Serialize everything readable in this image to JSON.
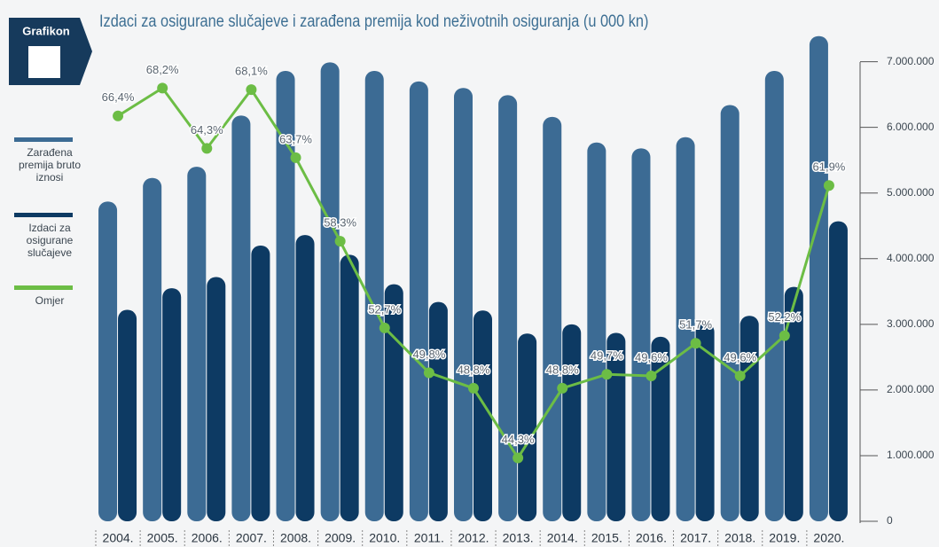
{
  "chart_data": {
    "type": "bar",
    "title": "Izdaci za osigurane slučajeve i zarađena premija kod neživotnih osiguranja (u 000 kn)",
    "badge": "Grafikon",
    "categories": [
      "2004.",
      "2005.",
      "2006.",
      "2007.",
      "2008.",
      "2009.",
      "2010.",
      "2011.",
      "2012.",
      "2013.",
      "2014.",
      "2015.",
      "2016.",
      "2017.",
      "2018.",
      "2019.",
      "2020."
    ],
    "series": [
      {
        "name": "Zarađena premija bruto iznosi",
        "type": "bar",
        "color": "#3c6b94",
        "values": [
          4870000,
          5230000,
          5400000,
          6180000,
          6860000,
          6990000,
          6860000,
          6700000,
          6600000,
          6490000,
          6160000,
          5770000,
          5680000,
          5850000,
          6340000,
          6860000,
          7390000
        ]
      },
      {
        "name": "Izdaci za osigurane slučajeve",
        "type": "bar",
        "color": "#0d3a63",
        "values": [
          3220000,
          3550000,
          3720000,
          4200000,
          4360000,
          4060000,
          3610000,
          3340000,
          3210000,
          2860000,
          3000000,
          2870000,
          2810000,
          3020000,
          3130000,
          3570000,
          4570000
        ]
      },
      {
        "name": "Omjer",
        "type": "line",
        "axis": "y2",
        "color": "#6cbd45",
        "values": [
          66.4,
          68.2,
          64.3,
          68.1,
          63.7,
          58.3,
          52.7,
          49.8,
          48.8,
          44.3,
          48.8,
          49.7,
          49.6,
          51.7,
          49.6,
          52.2,
          61.9
        ],
        "value_labels": [
          "66,4%",
          "68,2%",
          "64,3%",
          "68,1%",
          "63,7%",
          "58,3%",
          "52,7%",
          "49,8%",
          "48,8%",
          "44,3%",
          "48,8%",
          "49,7%",
          "49,6%",
          "51,7%",
          "49,6%",
          "52,2%",
          "61,9%"
        ]
      }
    ],
    "ylim": [
      0,
      7400000
    ],
    "yticks": [
      0,
      {
        "value": 1000000,
        "label": "1.000.000"
      },
      {
        "value": 2000000,
        "label": "2.000.000"
      },
      {
        "value": 3000000,
        "label": "3.000.000"
      },
      {
        "value": 4000000,
        "label": "4.000.000"
      },
      {
        "value": 5000000,
        "label": "5.000.000"
      },
      {
        "value": 6000000,
        "label": "6.000.000"
      },
      {
        "value": 7000000,
        "label": "7.000.000"
      }
    ],
    "y2lim": [
      40.2,
      71.6
    ],
    "legend": "left"
  }
}
